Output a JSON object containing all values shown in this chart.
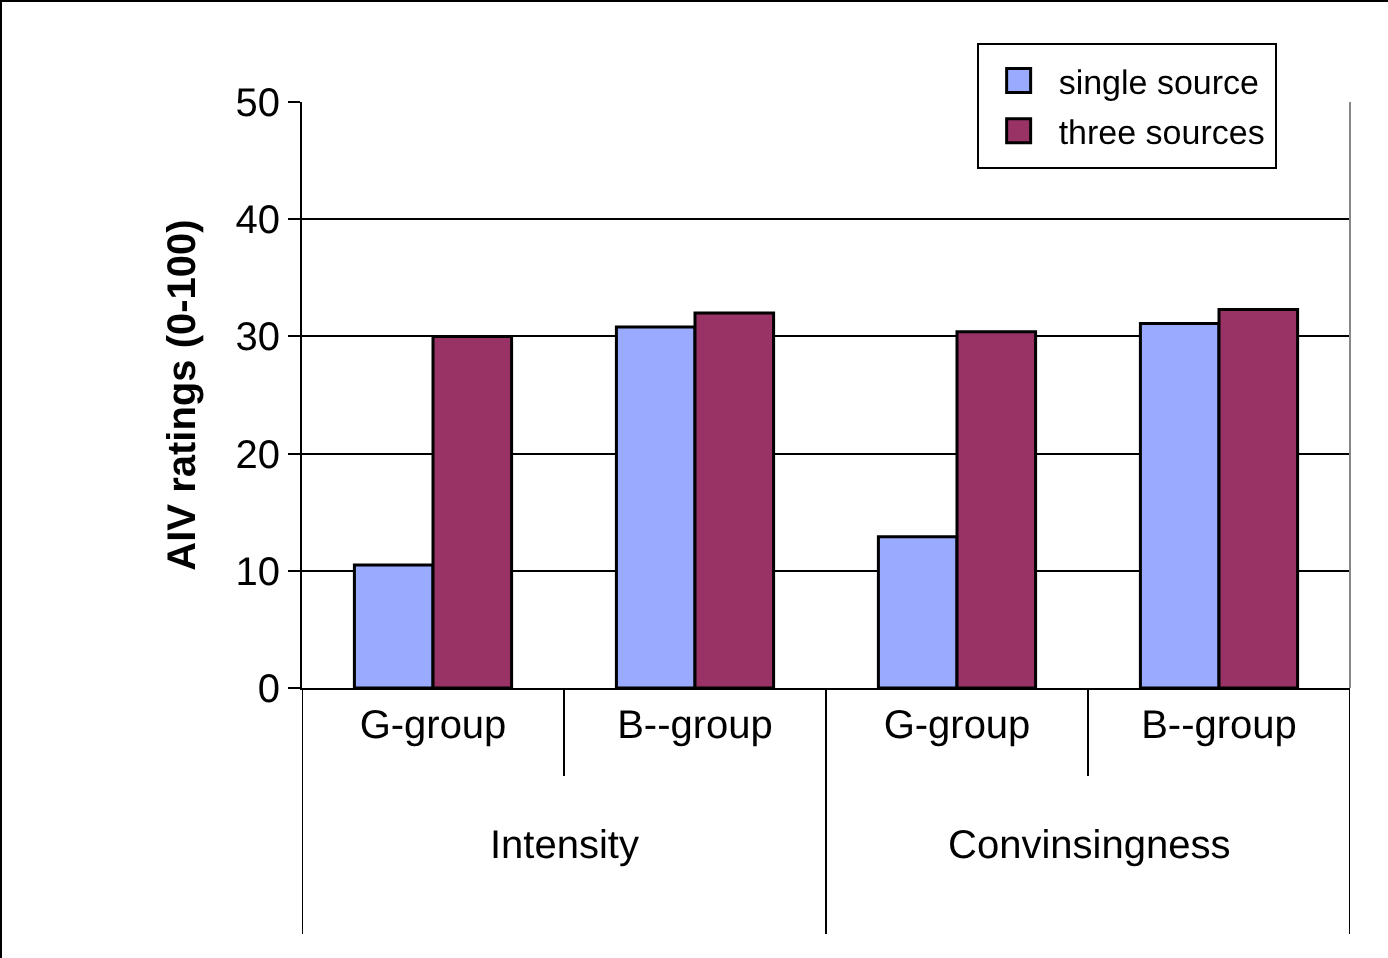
{
  "chart_data": {
    "type": "bar",
    "ylabel": "AIV ratings (0-100)",
    "categories": [
      "G-group",
      "B--group",
      "G-group",
      "B--group"
    ],
    "series": [
      {
        "name": "single source",
        "color": "#9aabff",
        "values": [
          10.5,
          30.8,
          12.9,
          31.1
        ]
      },
      {
        "name": "three sources",
        "color": "#993366",
        "values": [
          30,
          32,
          30.4,
          32.3
        ]
      }
    ],
    "annotations": [
      "Intensity",
      "Convinsingness"
    ],
    "ylim": [
      0,
      50
    ],
    "yticks": [
      0,
      10,
      20,
      30,
      40,
      50
    ],
    "grid": "y",
    "legend": "top right"
  }
}
